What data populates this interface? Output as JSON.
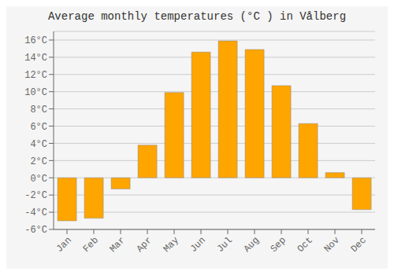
{
  "chart_data": {
    "type": "bar",
    "title": "Average monthly temperatures (°C ) in Vålberg",
    "categories": [
      "Jan",
      "Feb",
      "Mar",
      "Apr",
      "May",
      "Jun",
      "Jul",
      "Aug",
      "Sep",
      "Oct",
      "Nov",
      "Dec"
    ],
    "values": [
      -5.0,
      -4.7,
      -1.3,
      3.8,
      9.9,
      14.6,
      15.9,
      14.9,
      10.7,
      6.3,
      0.6,
      -3.7
    ],
    "color": "#FFA500",
    "ylim": [
      -6,
      17
    ],
    "yticks": [
      {
        "value": -6,
        "label": "-6°C"
      },
      {
        "value": -4,
        "label": "-4°C"
      },
      {
        "value": -2,
        "label": "-2°C"
      },
      {
        "value": 0,
        "label": "0°C"
      },
      {
        "value": 2,
        "label": "2°C"
      },
      {
        "value": 4,
        "label": "4°C"
      },
      {
        "value": 6,
        "label": "6°C"
      },
      {
        "value": 8,
        "label": "8°C"
      },
      {
        "value": 10,
        "label": "10°C"
      },
      {
        "value": 12,
        "label": "12°C"
      },
      {
        "value": 14,
        "label": "14°C"
      },
      {
        "value": 16,
        "label": "16°C"
      }
    ],
    "grid": true
  }
}
